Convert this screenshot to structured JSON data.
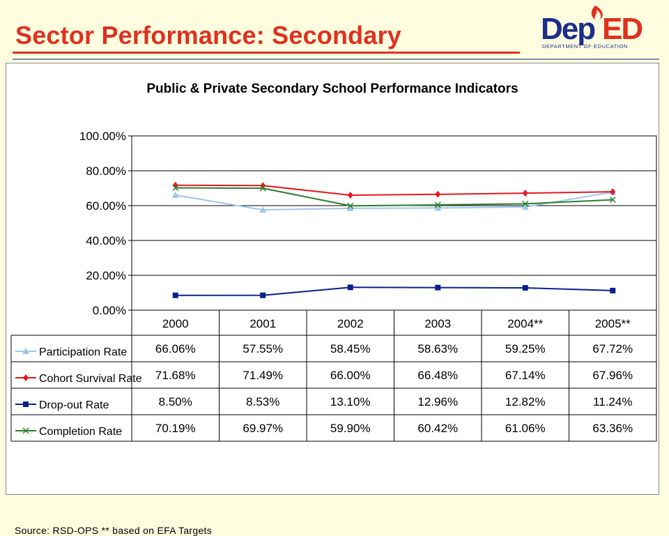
{
  "slide": {
    "title": "Sector Performance:  Secondary",
    "logo_text": "DepED",
    "logo_subtext": "DEPARTMENT OF EDUCATION"
  },
  "colors": {
    "title": "#e0301e",
    "participation": "#9cc7ee",
    "cohort": "#e4181e",
    "dropout": "#0b1f8f",
    "completion": "#2e7d2e",
    "logo_blue": "#1b2f8a",
    "logo_red": "#e0301e"
  },
  "chart_data": {
    "type": "line",
    "title": "Public & Private Secondary School Performance Indicators",
    "categories": [
      "2000",
      "2001",
      "2002",
      "2003",
      "2004**",
      "2005**"
    ],
    "ylim": [
      0,
      100
    ],
    "yticks": [
      "100.00%",
      "80.00%",
      "60.00%",
      "40.00%",
      "20.00%",
      "0.00%"
    ],
    "grid": "horizontal",
    "legend": "data-table-left",
    "series": [
      {
        "name": "Participation Rate",
        "marker": "triangle",
        "values": [
          66.06,
          57.55,
          58.45,
          58.63,
          59.25,
          67.72
        ],
        "labels": [
          "66.06%",
          "57.55%",
          "58.45%",
          "58.63%",
          "59.25%",
          "67.72%"
        ]
      },
      {
        "name": "Cohort Survival Rate",
        "marker": "diamond",
        "values": [
          71.68,
          71.49,
          66.0,
          66.48,
          67.14,
          67.96
        ],
        "labels": [
          "71.68%",
          "71.49%",
          "66.00%",
          "66.48%",
          "67.14%",
          "67.96%"
        ]
      },
      {
        "name": "Drop-out Rate",
        "marker": "square",
        "values": [
          8.5,
          8.53,
          13.1,
          12.96,
          12.82,
          11.24
        ],
        "labels": [
          "8.50%",
          "8.53%",
          "13.10%",
          "12.96%",
          "12.82%",
          "11.24%"
        ]
      },
      {
        "name": "Completion Rate",
        "marker": "x",
        "values": [
          70.19,
          69.97,
          59.9,
          60.42,
          61.06,
          63.36
        ],
        "labels": [
          "70.19%",
          "69.97%",
          "59.90%",
          "60.42%",
          "61.06%",
          "63.36%"
        ]
      }
    ],
    "source": "Source: RSD-OPS ** based on EFA Targets"
  }
}
